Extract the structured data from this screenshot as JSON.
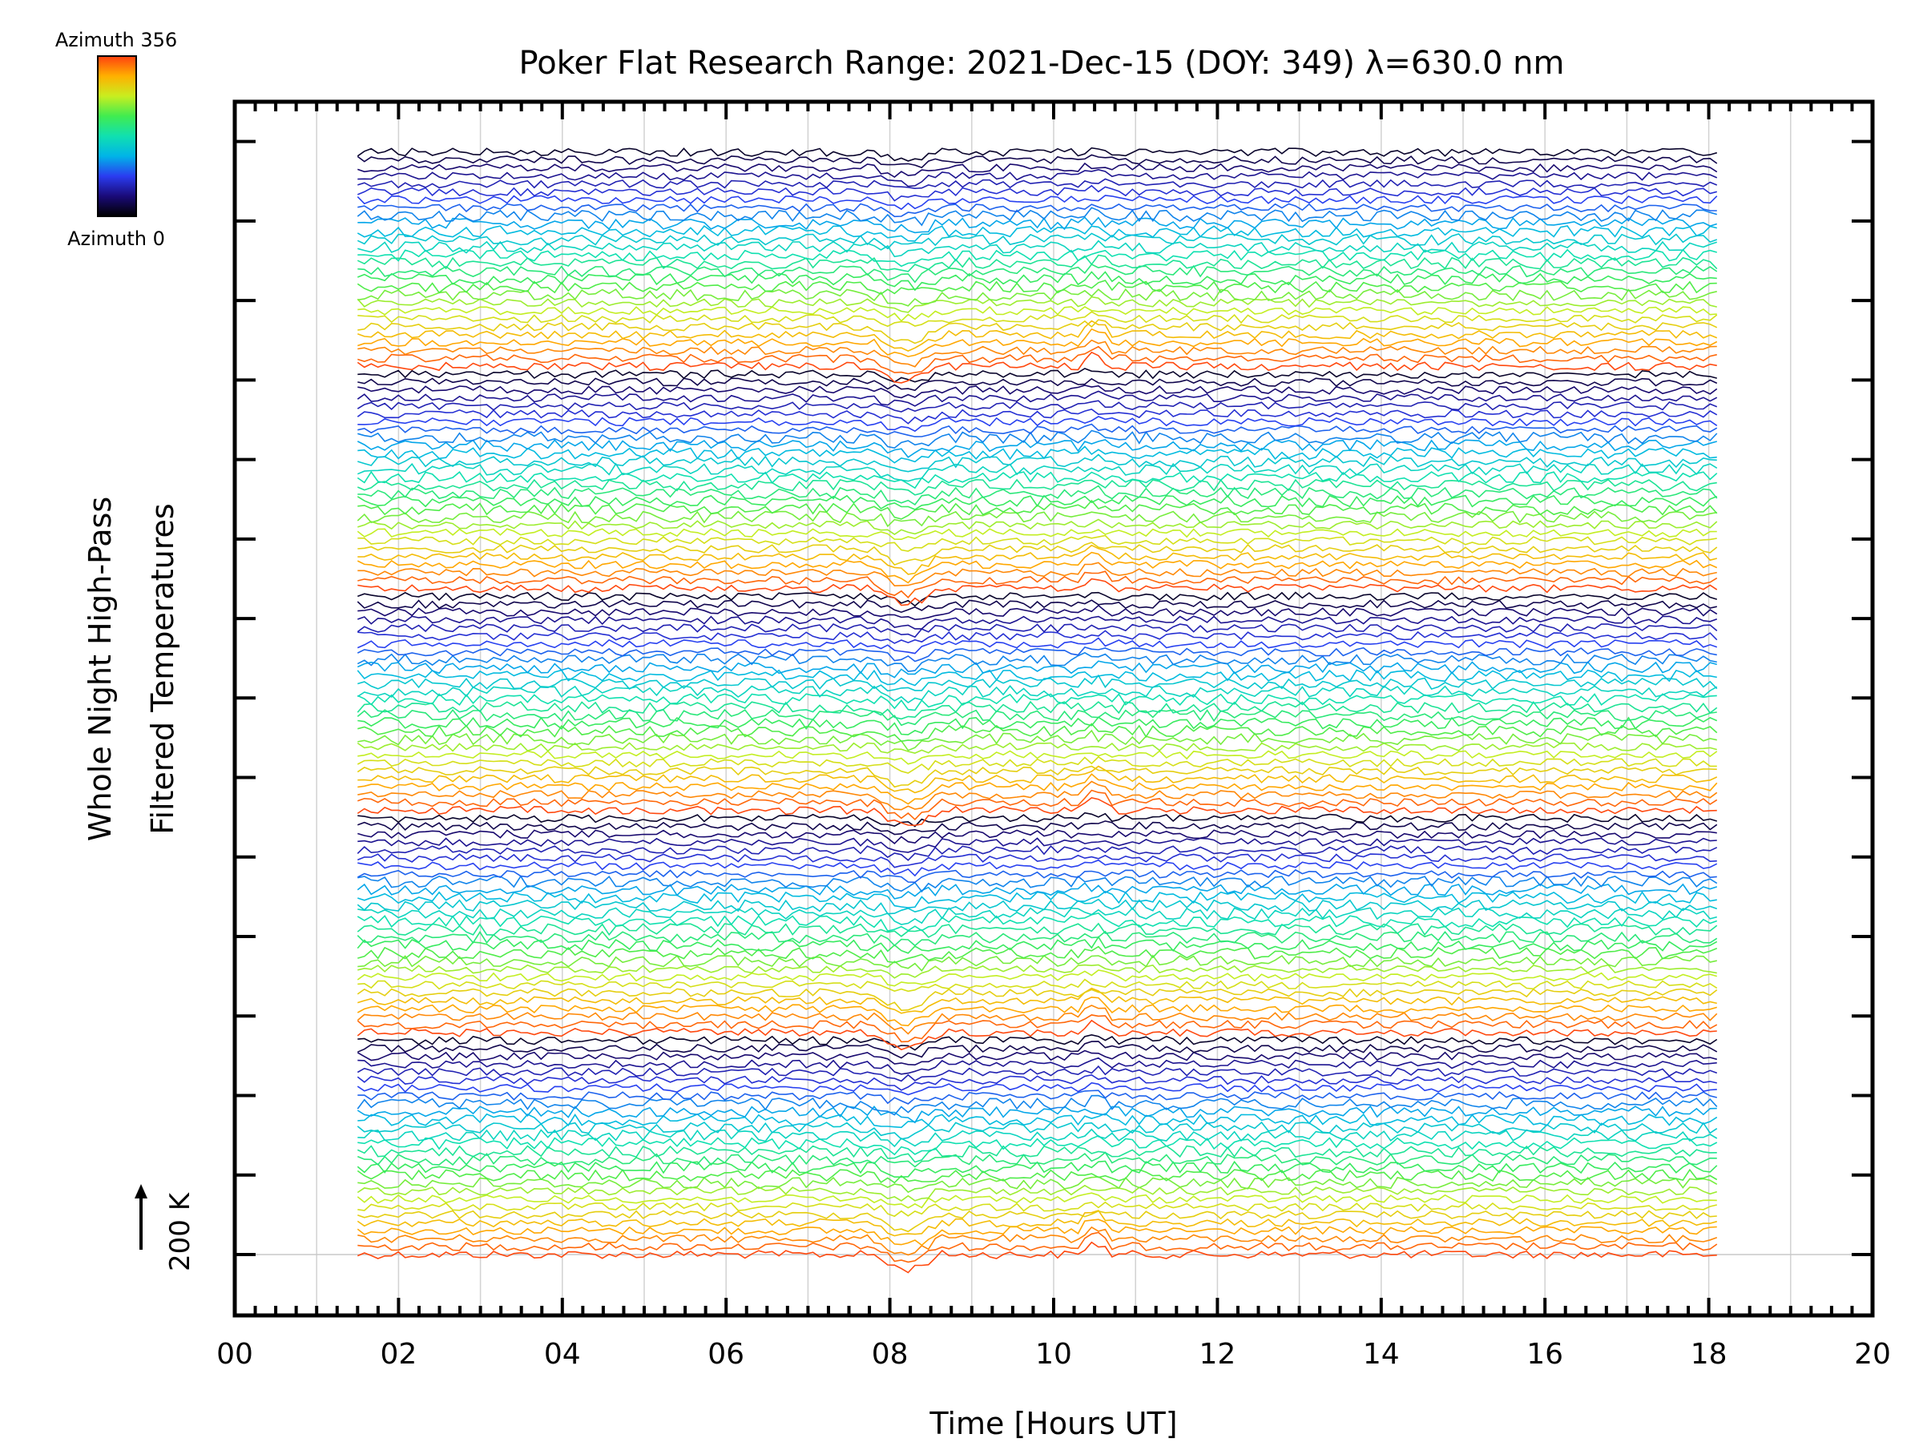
{
  "chart_data": {
    "type": "line",
    "title": "Poker Flat Research Range: 2021-Dec-15 (DOY: 349) λ=630.0 nm",
    "xlabel": "Time [Hours UT]",
    "ylabel_lines": [
      "Whole Night High-Pass",
      "Filtered Temperatures"
    ],
    "xlim": [
      0,
      20
    ],
    "x_ticks": [
      "00",
      "02",
      "04",
      "06",
      "08",
      "10",
      "12",
      "14",
      "16",
      "18",
      "20"
    ],
    "x_minor_step": 0.25,
    "data_start_hour": 1.5,
    "data_end_hour": 18.1,
    "trace_count": 140,
    "y_major_tick_count": 15,
    "grid": true,
    "vertical_gridlines_every_hours": 1,
    "scale_bar": {
      "label": "200 K"
    },
    "colorbar": {
      "top_label": "Azimuth 356",
      "bottom_label": "Azimuth 0",
      "colormap": "rainbow",
      "stops": [
        "#000000",
        "#1a0a78",
        "#2a3cf0",
        "#00b4e8",
        "#10e0b0",
        "#40ec50",
        "#c8ee20",
        "#ffb000",
        "#ff4010"
      ]
    },
    "notes": "Stacked high-pass filtered temperature traces by azimuth (blue/black = low azimuth, orange/red = high azimuth); values are noise-like with disturbances near 08:00–08:30 and 10:30 UT."
  }
}
